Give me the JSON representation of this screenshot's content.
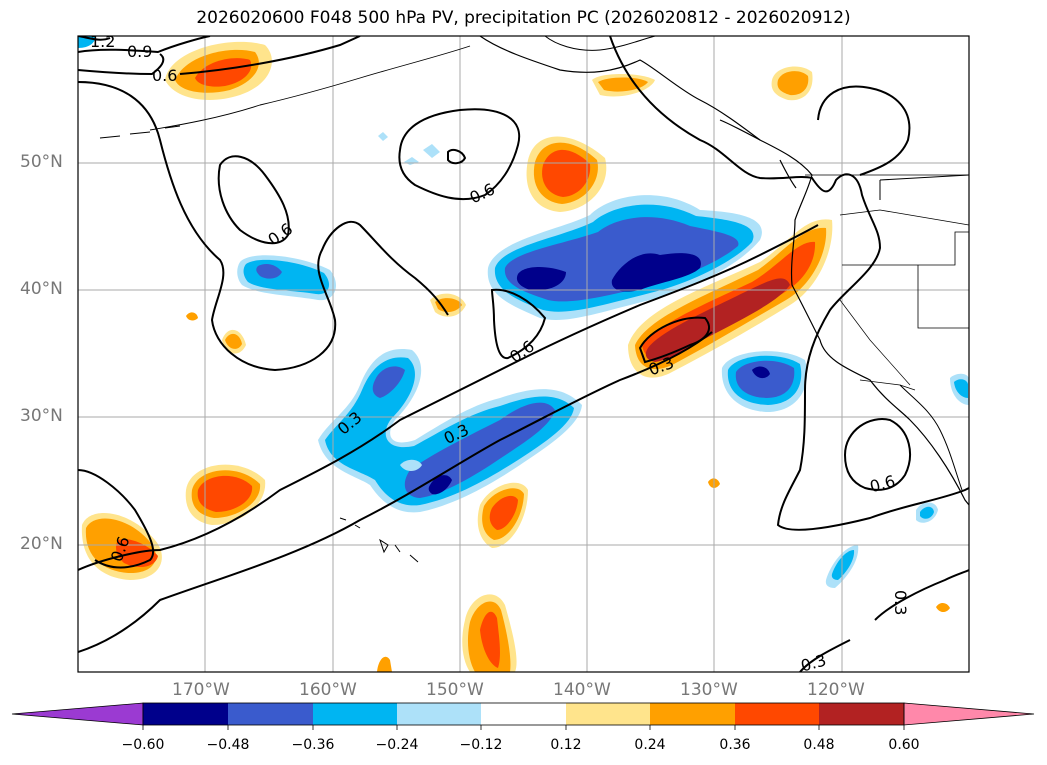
{
  "title": "2026020600 F048 500 hPa PV, precipitation PC (2026020812 - 2026020912)",
  "axes": {
    "lat_labels": [
      "50°N",
      "40°N",
      "30°N",
      "20°N"
    ],
    "lon_labels": [
      "170°W",
      "160°W",
      "150°W",
      "140°W",
      "130°W",
      "120°W"
    ]
  },
  "contour_labels": [
    "1.2",
    "0.9",
    "0.6",
    "0.6",
    "0.6",
    "0.6",
    "0.6",
    "0.6",
    "0.3",
    "0.3",
    "0.3",
    "0.3",
    "0.3"
  ],
  "colorbar": {
    "ticks": [
      "−0.60",
      "−0.48",
      "−0.36",
      "−0.24",
      "−0.12",
      "0.12",
      "0.24",
      "0.36",
      "0.48",
      "0.60"
    ],
    "colors": [
      "#9b3ad2",
      "#00008b",
      "#3a5bcd",
      "#00b5f2",
      "#ade1f9",
      "#ffffff",
      "#ffe48c",
      "#ffa000",
      "#ff4800",
      "#b22222",
      "#ff88aa"
    ]
  }
}
